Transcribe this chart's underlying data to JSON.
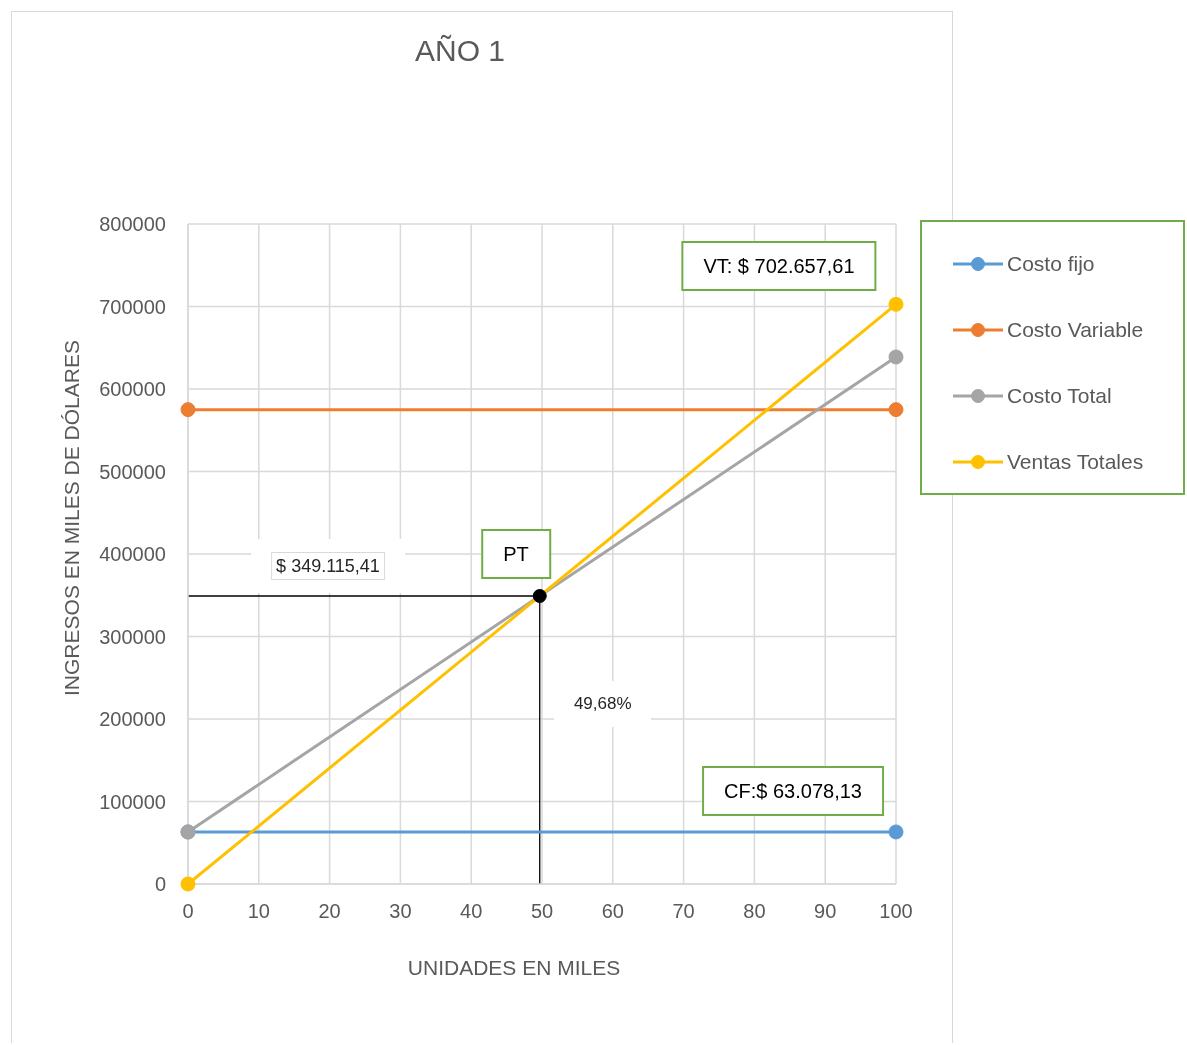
{
  "chart_data": {
    "type": "line",
    "title": "AÑO 1",
    "xlabel": "UNIDADES EN MILES",
    "ylabel": "INGRESOS EN MILES DE DÓLARES",
    "x": [
      0,
      100
    ],
    "series": [
      {
        "name": "Costo fijo",
        "color": "#5b9bd5",
        "values": [
          63078.13,
          63078.13
        ]
      },
      {
        "name": "Costo Variable",
        "color": "#ed7d31",
        "values": [
          575000,
          575000
        ]
      },
      {
        "name": "Costo Total",
        "color": "#a5a5a5",
        "values": [
          63078.13,
          638800
        ]
      },
      {
        "name": "Ventas Totales",
        "color": "#ffc000",
        "values": [
          0,
          702657.61
        ]
      },
      {
        "type": "scatter",
        "color": "#000000",
        "x": [
          49.68
        ],
        "values": [
          349115.41
        ]
      }
    ],
    "xlim": [
      0,
      100
    ],
    "xticks": [
      0,
      10,
      20,
      30,
      40,
      50,
      60,
      70,
      80,
      90,
      100
    ],
    "ylim": [
      0,
      800000
    ],
    "yticks": [
      0,
      100000,
      200000,
      300000,
      400000,
      500000,
      600000,
      700000,
      800000
    ],
    "grid": true,
    "legend": "right",
    "marker": "circle",
    "ref_lines": [
      {
        "axis": "y",
        "value": 349115.41,
        "label": "$ 349.115,41",
        "color": "#000000"
      },
      {
        "axis": "x",
        "value": 49.68,
        "label": "49,68%",
        "color": "#000000"
      }
    ],
    "annotations": [
      "VT: $ 702.657,61",
      "PT",
      "CF:$ 63.078,13"
    ]
  }
}
